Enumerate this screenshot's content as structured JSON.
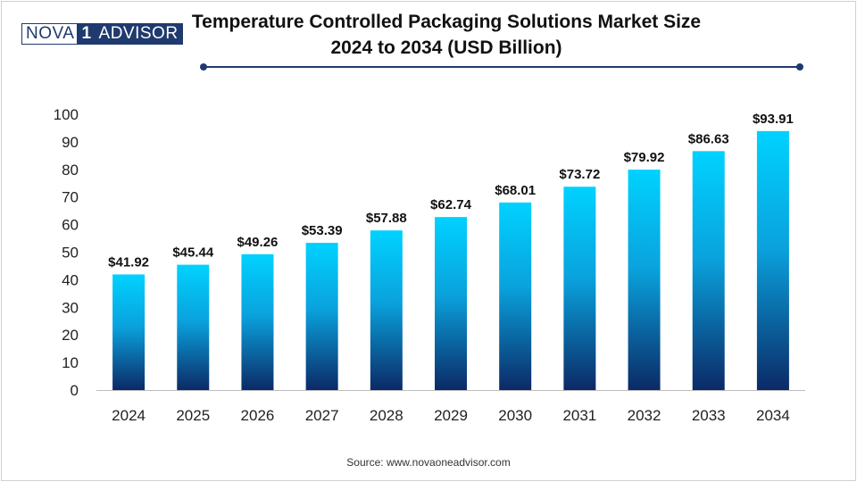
{
  "logo": {
    "part_a": "NOVA",
    "part_n": "1",
    "part_b": "ADVISOR"
  },
  "title_line1": "Temperature Controlled Packaging Solutions Market Size",
  "title_line2": "2024 to 2034 (USD Billion)",
  "source": "Source: www.novaoneadvisor.com",
  "colors": {
    "bar_top": "#00d2ff",
    "bar_bottom": "#0b2a66",
    "accent": "#1f3a6e"
  },
  "chart_data": {
    "type": "bar",
    "title": "Temperature Controlled Packaging Solutions Market Size 2024 to 2034 (USD Billion)",
    "categories": [
      "2024",
      "2025",
      "2026",
      "2027",
      "2028",
      "2029",
      "2030",
      "2031",
      "2032",
      "2033",
      "2034"
    ],
    "values": [
      41.92,
      45.44,
      49.26,
      53.39,
      57.88,
      62.74,
      68.01,
      73.72,
      79.92,
      86.63,
      93.91
    ],
    "labels": [
      "$41.92",
      "$45.44",
      "$49.26",
      "$53.39",
      "$57.88",
      "$62.74",
      "$68.01",
      "$73.72",
      "$79.92",
      "$86.63",
      "$93.91"
    ],
    "yticks": [
      "0",
      "10",
      "20",
      "30",
      "40",
      "50",
      "60",
      "70",
      "80",
      "90",
      "100"
    ],
    "ylim": [
      0,
      100
    ],
    "xlabel": "",
    "ylabel": "",
    "grid": false,
    "legend": "none"
  }
}
